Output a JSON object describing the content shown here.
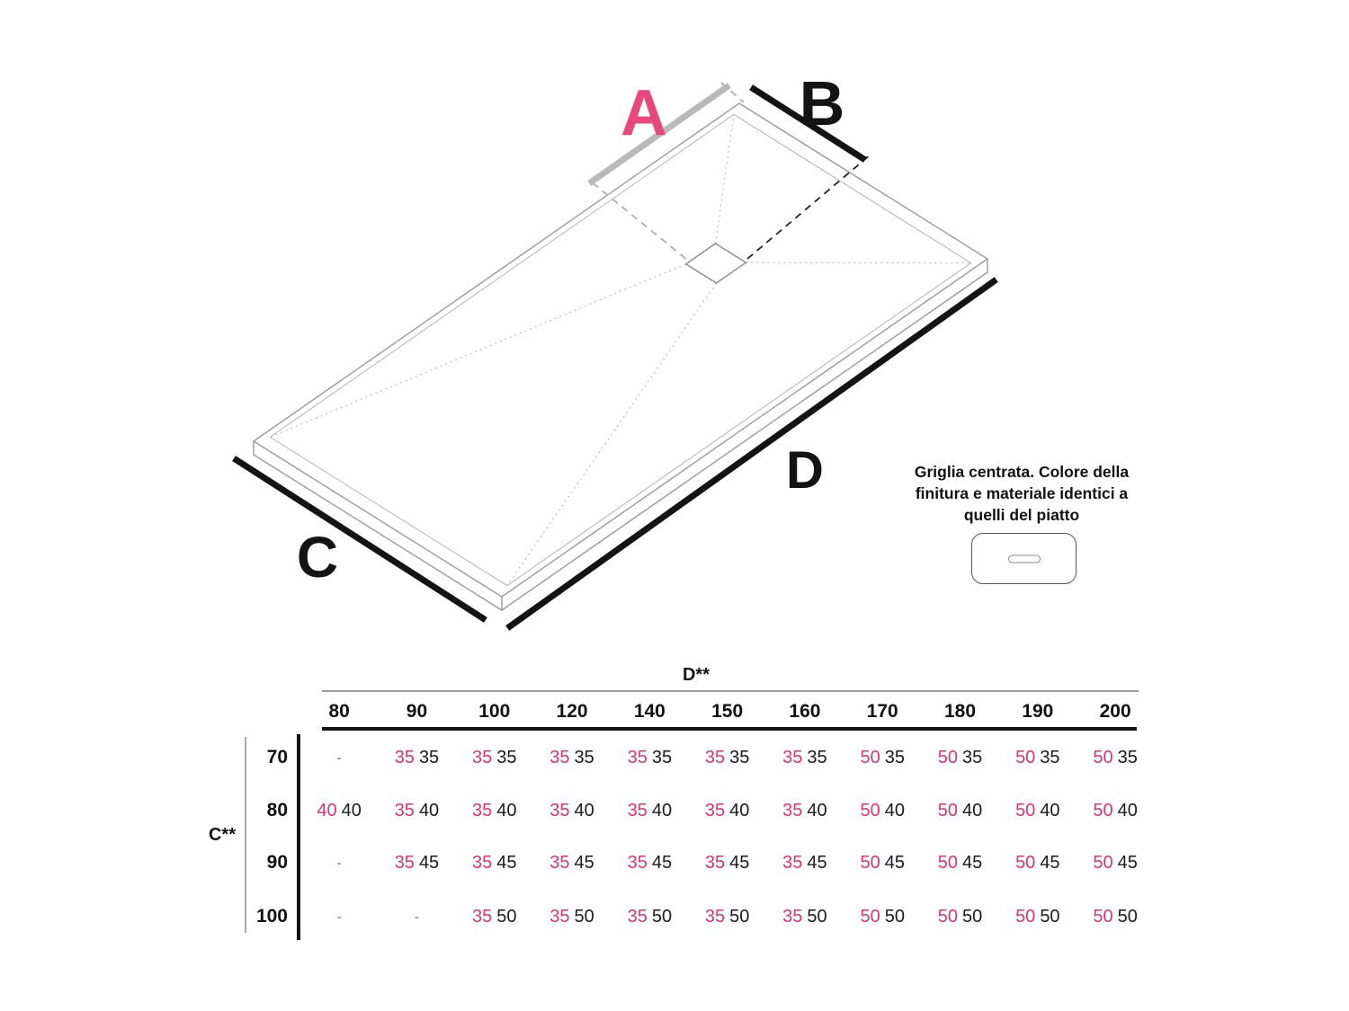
{
  "diagram": {
    "dimension_labels": {
      "a": "A",
      "b": "B",
      "c": "C",
      "d": "D"
    },
    "note_text": "Griglia centrata. Colore della finitura e materiale identici a quelli del piatto",
    "icons": {
      "grille": "drain-grille-icon"
    }
  },
  "colors": {
    "label_pink": "#E7497D",
    "value_pink": "#DB346E",
    "ink": "#141414"
  },
  "table": {
    "d_axis_label": "D**",
    "c_axis_label": "C**",
    "columns": [
      "80",
      "90",
      "100",
      "120",
      "140",
      "150",
      "160",
      "170",
      "180",
      "190",
      "200"
    ],
    "rows": [
      {
        "label": "70",
        "cells": [
          "-",
          "35 35",
          "35 35",
          "35 35",
          "35 35",
          "35 35",
          "35 35",
          "50 35",
          "50 35",
          "50 35",
          "50 35"
        ]
      },
      {
        "label": "80",
        "cells": [
          "40 40",
          "35 40",
          "35 40",
          "35 40",
          "35 40",
          "35 40",
          "35 40",
          "50 40",
          "50 40",
          "50 40",
          "50 40"
        ]
      },
      {
        "label": "90",
        "cells": [
          "-",
          "35 45",
          "35 45",
          "35 45",
          "35 45",
          "35 45",
          "35 45",
          "50 45",
          "50 45",
          "50 45",
          "50 45"
        ]
      },
      {
        "label": "100",
        "cells": [
          "-",
          "-",
          "35 50",
          "35 50",
          "35 50",
          "35 50",
          "35 50",
          "50 50",
          "50 50",
          "50 50",
          "50 50"
        ]
      }
    ]
  }
}
